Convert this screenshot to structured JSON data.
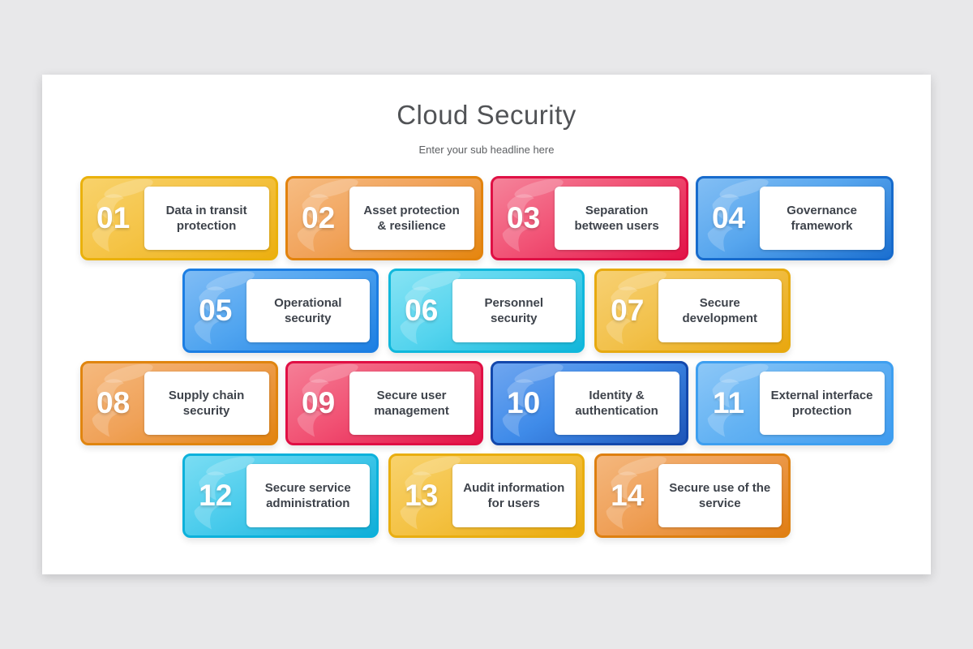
{
  "page": {
    "background_color": "#E8E8EA",
    "slide_background_color": "#FFFFFF"
  },
  "header": {
    "title": "Cloud Security",
    "subtitle": "Enter your sub headline here",
    "title_color": "#515356",
    "subtitle_color": "#5E6063"
  },
  "cards": [
    {
      "number": "01",
      "label": "Data in transit protection",
      "row": 1,
      "colors": {
        "light": "#F8D26B",
        "base": "#F5C447",
        "dark": "#ECAF10",
        "border": "#EAB10C"
      }
    },
    {
      "number": "02",
      "label": "Asset protection & resilience",
      "row": 1,
      "colors": {
        "light": "#F6BC82",
        "base": "#F1A35B",
        "dark": "#E5860F",
        "border": "#E2830D"
      }
    },
    {
      "number": "03",
      "label": "Separation between users",
      "row": 1,
      "colors": {
        "light": "#F5839A",
        "base": "#F15275",
        "dark": "#E21348",
        "border": "#DF1145"
      }
    },
    {
      "number": "04",
      "label": "Governance framework",
      "row": 1,
      "colors": {
        "light": "#82BEF4",
        "base": "#57A6EE",
        "dark": "#1B6FD0",
        "border": "#176BCC"
      }
    },
    {
      "number": "05",
      "label": "Operational security",
      "row": 2,
      "colors": {
        "light": "#7FBCF5",
        "base": "#51A5F0",
        "dark": "#1D7FE2",
        "border": "#1C7EE3"
      }
    },
    {
      "number": "06",
      "label": "Personnel security",
      "row": 2,
      "colors": {
        "light": "#86E3F4",
        "base": "#55D4EE",
        "dark": "#12B6DA",
        "border": "#10B8DC"
      }
    },
    {
      "number": "07",
      "label": "Secure development",
      "row": 2,
      "colors": {
        "light": "#F7D072",
        "base": "#F2C14B",
        "dark": "#E9A70F",
        "border": "#E7AA10"
      }
    },
    {
      "number": "08",
      "label": "Supply chain security",
      "row": 3,
      "colors": {
        "light": "#F5B97E",
        "base": "#F0A259",
        "dark": "#E28310",
        "border": "#E0850F"
      }
    },
    {
      "number": "09",
      "label": "Secure user management",
      "row": 3,
      "colors": {
        "light": "#F57E96",
        "base": "#F15173",
        "dark": "#E21146",
        "border": "#E00F44"
      }
    },
    {
      "number": "10",
      "label": "Identity & authentication",
      "row": 3,
      "colors": {
        "light": "#6FA6F0",
        "base": "#3F8BE9",
        "dark": "#1D55B8",
        "border": "#1348AC"
      }
    },
    {
      "number": "11",
      "label": "External interface protection",
      "row": 3,
      "colors": {
        "light": "#8CC7F7",
        "base": "#63B2F3",
        "dark": "#3F9BEF",
        "border": "#3E9FF0"
      }
    },
    {
      "number": "12",
      "label": "Secure service administration",
      "row": 4,
      "colors": {
        "light": "#7ADDF3",
        "base": "#49CBEC",
        "dark": "#0FAED8",
        "border": "#0CB1DB"
      }
    },
    {
      "number": "13",
      "label": "Audit information for users",
      "row": 4,
      "colors": {
        "light": "#F8D26C",
        "base": "#F4C244",
        "dark": "#EAAA0D",
        "border": "#E9AE10"
      }
    },
    {
      "number": "14",
      "label": "Secure use of the service",
      "row": 4,
      "colors": {
        "light": "#F4B77D",
        "base": "#EF9F56",
        "dark": "#E07D12",
        "border": "#DE8011"
      }
    }
  ]
}
